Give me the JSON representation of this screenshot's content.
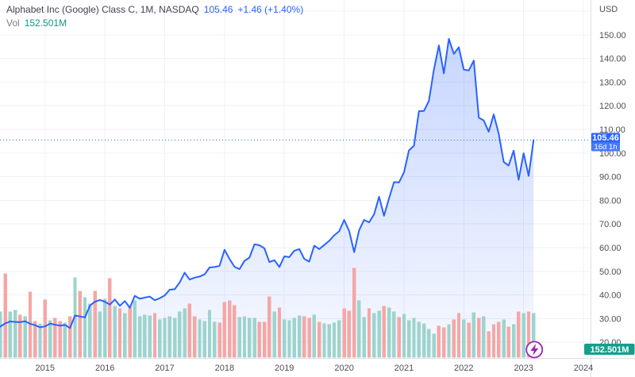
{
  "header": {
    "symbol_title": "Alphabet Inc (Google) Class C, 1M, NASDAQ",
    "price": "105.46",
    "change": "+1.46 (+1.40%)",
    "vol_label": "Vol",
    "vol_value": "152.501M"
  },
  "price_scale": {
    "currency_label": "USD",
    "tick_labels": [
      "150.00",
      "140.00",
      "130.00",
      "120.00",
      "110.00",
      "100.00",
      "90.00",
      "80.00",
      "70.00",
      "60.00",
      "50.00",
      "40.00",
      "30.00",
      "20.00"
    ],
    "last_price_badge": {
      "price": "105.46",
      "countdown": "16d 1h"
    },
    "volume_badge": "152.501M"
  },
  "time_scale": {
    "year_labels": [
      "2015",
      "2016",
      "2017",
      "2018",
      "2019",
      "2020",
      "2021",
      "2022",
      "2023",
      "2024"
    ]
  },
  "icons": {
    "lightning": "flash-marker"
  },
  "colors": {
    "line": "#2962ff",
    "area_top": "rgba(41,98,255,0.26)",
    "area_bottom": "rgba(41,98,255,0.04)",
    "vol_up": "#9dd4cd",
    "vol_down": "#f5a7a5",
    "grid": "#eef1f8",
    "axis_line": "#dcdfe6",
    "axis_text": "#4c4f57",
    "badge_blue": "#2962ff",
    "badge_green": "#149f8c",
    "flash_purple": "#9c27b0"
  },
  "chart_data": {
    "type": "line",
    "title": "Alphabet Inc (Google) Class C, 1M, NASDAQ",
    "x_start_month": "2014-03",
    "x_interval": "1M",
    "ylabel": "USD",
    "ylim": [
      18,
      162
    ],
    "y_ticks": [
      150,
      140,
      130,
      120,
      110,
      100,
      90,
      80,
      70,
      60,
      50,
      40,
      30,
      20
    ],
    "x_year_ticks": [
      "2015",
      "2016",
      "2017",
      "2018",
      "2019",
      "2020",
      "2021",
      "2022",
      "2023",
      "2024"
    ],
    "grid": true,
    "legend_position": "top-left",
    "last_price": 105.46,
    "close": [
      27.9,
      26.6,
      28.0,
      28.8,
      28.6,
      28.5,
      28.9,
      27.8,
      27.2,
      26.3,
      26.7,
      27.9,
      27.4,
      27.0,
      27.3,
      26.0,
      31.3,
      30.9,
      30.5,
      35.5,
      37.1,
      37.9,
      37.1,
      35.9,
      38.1,
      35.4,
      37.4,
      34.6,
      39.6,
      38.4,
      38.9,
      39.3,
      37.8,
      38.6,
      39.8,
      42.2,
      42.4,
      45.3,
      49.4,
      46.5,
      47.3,
      47.8,
      48.7,
      51.6,
      51.8,
      52.3,
      59.1,
      55.2,
      51.9,
      50.9,
      54.4,
      55.8,
      61.4,
      61.0,
      59.7,
      53.9,
      54.7,
      51.8,
      56.3,
      56.0,
      58.7,
      59.4,
      55.2,
      54.1,
      60.8,
      59.4,
      61.1,
      62.9,
      65.2,
      66.9,
      71.7,
      67.0,
      58.1,
      67.3,
      71.7,
      70.7,
      74.1,
      81.5,
      73.5,
      80.8,
      87.7,
      87.6,
      91.8,
      101.1,
      103.1,
      117.7,
      117.8,
      122.1,
      135.2,
      145.5,
      133.7,
      148.3,
      141.9,
      144.7,
      135.3,
      134.9,
      139.1,
      115.0,
      113.8,
      109.0,
      116.3,
      108.2,
      96.2,
      94.7,
      101.0,
      88.7,
      99.9,
      90.3,
      105.46
    ],
    "volume_series": {
      "type": "bar",
      "unit": "M shares",
      "note": "negative value = down (red) bar, positive = up (teal) bar",
      "values": [
        150,
        158,
        -288,
        158,
        163,
        -147,
        141,
        -226,
        -125,
        117,
        -199,
        128,
        -136,
        -125,
        120,
        -141,
        275,
        -229,
        207,
        185,
        -229,
        158,
        201,
        -272,
        177,
        -169,
        152,
        -174,
        196,
        141,
        147,
        144,
        -152,
        131,
        136,
        141,
        136,
        158,
        169,
        -185,
        -141,
        131,
        125,
        163,
        122,
        -120,
        -190,
        -196,
        -180,
        139,
        141,
        136,
        136,
        -122,
        -122,
        -210,
        158,
        -171,
        131,
        128,
        136,
        144,
        -141,
        -136,
        147,
        -122,
        117,
        114,
        120,
        128,
        -169,
        -161,
        -308,
        196,
        139,
        -169,
        152,
        161,
        -177,
        171,
        158,
        -139,
        150,
        128,
        136,
        122,
        117,
        98,
        82,
        -109,
        -103,
        114,
        -131,
        -152,
        131,
        -120,
        155,
        -136,
        141,
        -90,
        -114,
        -122,
        131,
        -106,
        114,
        -158,
        152,
        -158,
        152.501
      ]
    }
  }
}
